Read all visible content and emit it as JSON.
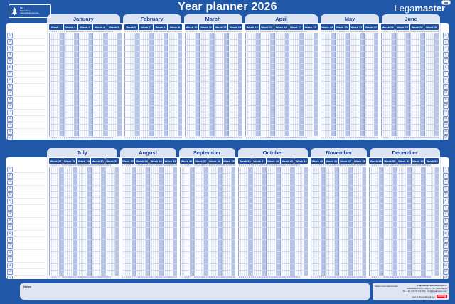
{
  "colors": {
    "background_blue": "#2057a6",
    "tab_bg": "#dce3f3",
    "tab_text": "#18428f",
    "week_chip_bg": "#1d4f9e",
    "weekend_column": "#b8c4e6",
    "weekday_stripe": "#eef2fb",
    "week_line": "#8fa3d6",
    "day_line": "#c4cfea",
    "row_line": "#ccd6ee",
    "edding_red": "#e30613"
  },
  "header": {
    "title": "Year planner 2026",
    "brand_prefix": "Lega",
    "brand_suffix": "master",
    "fsc": {
      "line1": "MIX",
      "line2": "Paper from",
      "line3": "responsible sources"
    }
  },
  "week_label_prefix": "Week",
  "days_in_week": 7,
  "panels": [
    {
      "name": "first-half",
      "rows": 17,
      "months": [
        {
          "name": "January",
          "weeks": [
            1,
            2,
            3,
            4,
            5
          ],
          "days": 31
        },
        {
          "name": "February",
          "weeks": [
            6,
            7,
            8,
            9
          ],
          "days": 28
        },
        {
          "name": "March",
          "weeks": [
            10,
            11,
            12,
            13
          ],
          "days": 31
        },
        {
          "name": "April",
          "weeks": [
            14,
            15,
            16,
            17,
            18
          ],
          "days": 30
        },
        {
          "name": "May",
          "weeks": [
            19,
            20,
            21,
            22
          ],
          "days": 31
        },
        {
          "name": "June",
          "weeks": [
            23,
            24,
            25,
            26
          ],
          "days": 30
        }
      ]
    },
    {
      "name": "second-half",
      "rows": 18,
      "months": [
        {
          "name": "July",
          "weeks": [
            27,
            28,
            29,
            30,
            31
          ],
          "days": 31
        },
        {
          "name": "August",
          "weeks": [
            32,
            33,
            34,
            35
          ],
          "days": 31
        },
        {
          "name": "September",
          "weeks": [
            36,
            37,
            38,
            39
          ],
          "days": 30
        },
        {
          "name": "October",
          "weeks": [
            40,
            41,
            42,
            43,
            44
          ],
          "days": 31
        },
        {
          "name": "November",
          "weeks": [
            45,
            46,
            47,
            48
          ],
          "days": 30
        },
        {
          "name": "December",
          "weeks": [
            49,
            50,
            51,
            52,
            53
          ],
          "days": 31
        }
      ]
    }
  ],
  "notes": {
    "label": "Notes"
  },
  "footer": {
    "made_in": "Made in the Netherlands",
    "company": "Legamaster International B.V.",
    "address": "Kwinkweerd 62, Lochem, The Netherlands",
    "contact": "Tel. +31 (0)573 713 000, info@legamaster.com",
    "group": "part of the edding group",
    "edding_logo": "edding"
  }
}
